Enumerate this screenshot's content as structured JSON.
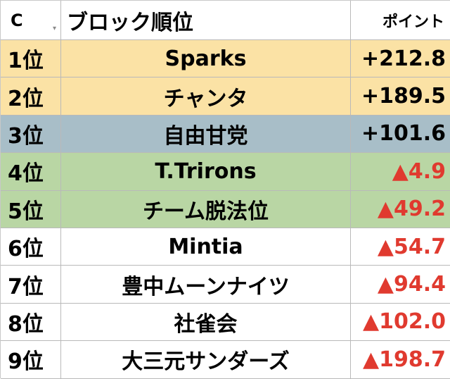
{
  "header": {
    "col_c": "C",
    "col_name": "ブロック順位",
    "col_points": "ポイント"
  },
  "rows": [
    {
      "rank": "1位",
      "team": "Sparks",
      "points": "+212.8",
      "sign": "pos",
      "bg": "#fbe2a5"
    },
    {
      "rank": "2位",
      "team": "チャンタ",
      "points": "+189.5",
      "sign": "pos",
      "bg": "#fbe2a5"
    },
    {
      "rank": "3位",
      "team": "自由甘党",
      "points": "+101.6",
      "sign": "pos",
      "bg": "#a8bec8"
    },
    {
      "rank": "4位",
      "team": "T.Trirons",
      "points": "▲4.9",
      "sign": "neg",
      "bg": "#b9d6a4"
    },
    {
      "rank": "5位",
      "team": "チーム脱法位",
      "points": "▲49.2",
      "sign": "neg",
      "bg": "#b9d6a4"
    },
    {
      "rank": "6位",
      "team": "Mintia",
      "points": "▲54.7",
      "sign": "neg",
      "bg": "#ffffff"
    },
    {
      "rank": "7位",
      "team": "豊中ムーンナイツ",
      "points": "▲94.4",
      "sign": "neg",
      "bg": "#ffffff"
    },
    {
      "rank": "8位",
      "team": "社雀会",
      "points": "▲102.0",
      "sign": "neg",
      "bg": "#ffffff"
    },
    {
      "rank": "9位",
      "team": "大三元サンダーズ",
      "points": "▲198.7",
      "sign": "neg",
      "bg": "#ffffff"
    }
  ],
  "colors": {
    "negative_text": "#e03a2f",
    "positive_text": "#000000",
    "grid_line": "#b9b9b9"
  },
  "icons": {
    "filter": "filter-dropdown-icon"
  }
}
